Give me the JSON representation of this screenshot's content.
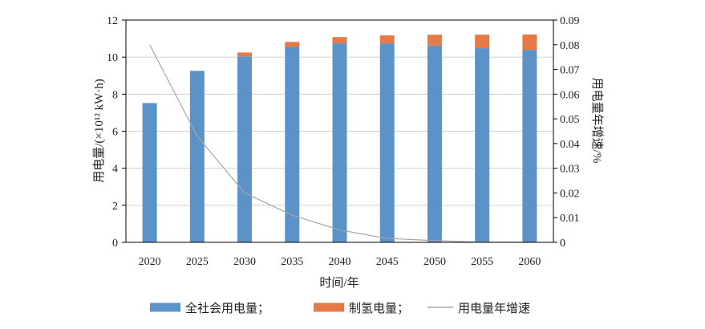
{
  "chart_data": {
    "type": "bar",
    "stacked": true,
    "categories": [
      "2020",
      "2025",
      "2030",
      "2035",
      "2040",
      "2045",
      "2050",
      "2055",
      "2060"
    ],
    "series": [
      {
        "name": "全社会用电量；",
        "type": "bar",
        "axis": "left",
        "color": "#5b93c9",
        "values": [
          7.52,
          9.26,
          10.04,
          10.55,
          10.74,
          10.74,
          10.62,
          10.48,
          10.39
        ]
      },
      {
        "name": "制氢电量；",
        "type": "bar",
        "axis": "left",
        "color": "#e57a46",
        "values": [
          0,
          0,
          0.21,
          0.27,
          0.34,
          0.43,
          0.59,
          0.73,
          0.83
        ]
      },
      {
        "name": "用电量年增速",
        "type": "line",
        "axis": "right",
        "color": "#a6a6a6",
        "values": [
          0.08,
          0.043,
          0.02,
          0.011,
          0.005,
          0.0016,
          0.0007,
          0.0001,
          0.0
        ]
      }
    ],
    "xlabel": "时间/年",
    "ylabel": "用电量/(×10¹² kW·h)",
    "y2label": "用电量年增速/%",
    "ylim": [
      0,
      12
    ],
    "yticks": [
      "0",
      "2",
      "4",
      "6",
      "8",
      "10",
      "12"
    ],
    "y2lim": [
      0,
      0.09
    ],
    "y2ticks": [
      "0",
      "0.01",
      "0.02",
      "0.03",
      "0.04",
      "0.05",
      "0.06",
      "0.07",
      "0.08",
      "0.09"
    ],
    "grid": true,
    "legend": "bottom"
  }
}
